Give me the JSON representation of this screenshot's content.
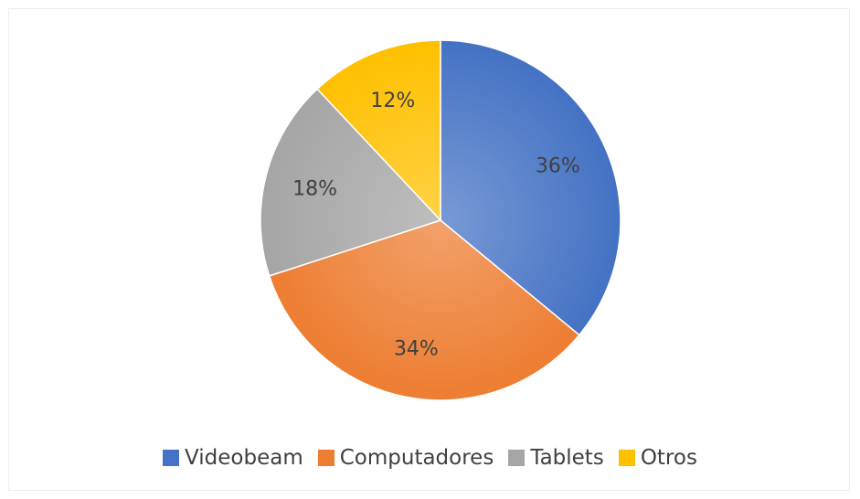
{
  "chart_data": {
    "type": "pie",
    "title": "",
    "categories": [
      "Videobeam",
      "Computadores",
      "Tablets",
      "Otros"
    ],
    "values": [
      36,
      34,
      18,
      12
    ],
    "data_labels": [
      "36%",
      "34%",
      "18%",
      "12%"
    ],
    "colors": [
      "#4472C4",
      "#ED7D31",
      "#A5A5A5",
      "#FFC000"
    ],
    "start_angle_deg": 0,
    "direction": "clockwise",
    "legend_position": "bottom"
  },
  "legend": {
    "items": [
      {
        "label": "Videobeam",
        "color": "#4472C4"
      },
      {
        "label": "Computadores",
        "color": "#ED7D31"
      },
      {
        "label": "Tablets",
        "color": "#A5A5A5"
      },
      {
        "label": "Otros",
        "color": "#FFC000"
      }
    ]
  }
}
